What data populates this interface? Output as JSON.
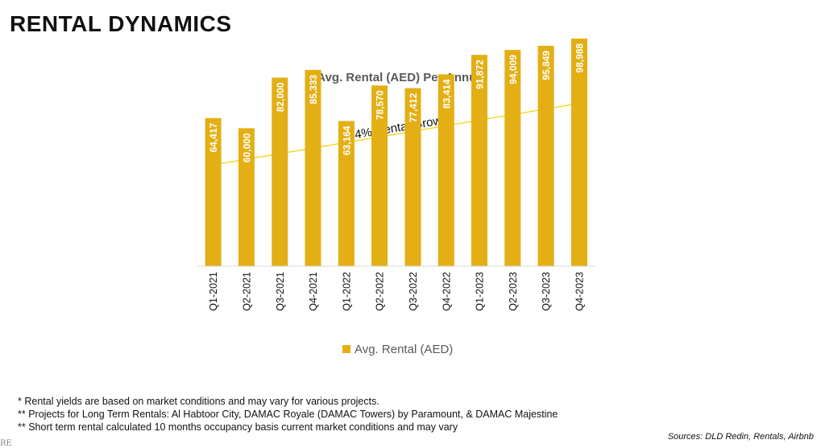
{
  "page": {
    "title": "RENTAL DYNAMICS",
    "corner_mark": "RE"
  },
  "chart_data": {
    "type": "bar",
    "title": "Avg. Rental (AED) Per Annum",
    "categories": [
      "Q1-2021",
      "Q2-2021",
      "Q3-2021",
      "Q4-2021",
      "Q1-2022",
      "Q2-2022",
      "Q3-2022",
      "Q4-2022",
      "Q1-2023",
      "Q2-2023",
      "Q3-2023",
      "Q4-2023"
    ],
    "series": [
      {
        "name": "Avg. Rental (AED)",
        "values": [
          64417,
          60000,
          82000,
          85333,
          63164,
          78570,
          77412,
          83414,
          91872,
          94009,
          95849,
          98988
        ],
        "labels": [
          "64,417",
          "60,000",
          "82,000",
          "85,333",
          "63,164",
          "78,570",
          "77,412",
          "83,414",
          "91,872",
          "94,009",
          "95,849",
          "98,988"
        ]
      }
    ],
    "ylim": [
      0,
      100000
    ],
    "grid": false,
    "legend": "bottom",
    "annotation": "54% Rental Growth",
    "bar_color": "#E3AF15",
    "arrow_color": "#F2D411"
  },
  "footnotes": [
    "* Rental yields are based on market conditions and may vary for various projects.",
    "** Projects for Long Term Rentals: Al Habtoor City, DAMAC Royale (DAMAC Towers) by Paramount, & DAMAC Majestine",
    "** Short term rental calculated 10 months occupancy basis current market conditions and may vary"
  ],
  "sources": "Sources: DLD Redin, Rentals, Airbnb"
}
